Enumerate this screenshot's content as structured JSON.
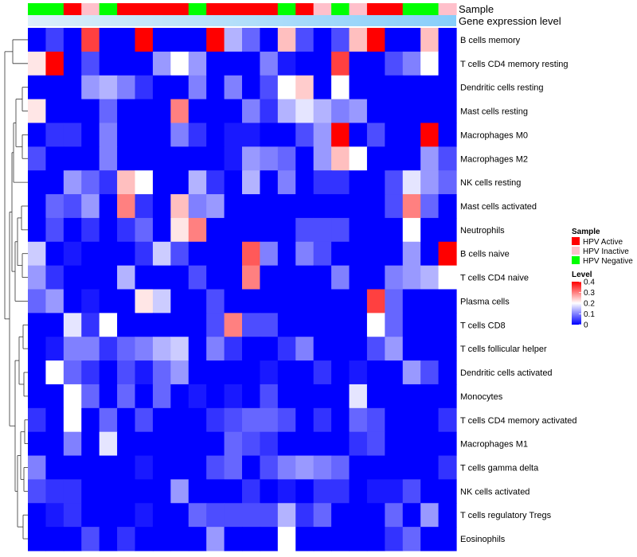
{
  "chart_data": {
    "type": "heatmap",
    "title": "",
    "annotation_labels": {
      "sample": "Sample",
      "expression": "Gene expression level"
    },
    "colors": {
      "low": "#0000FF",
      "mid": "#FFFFFF",
      "high": "#FF0000",
      "annotation_bar": "#87CEFA",
      "annotation_bar_light": "#DCEFFA",
      "HPV Active": "#FF0000",
      "HPV Inactive": "#FFC0CB",
      "HPV Negative": "#00FF00"
    },
    "sample_groups": [
      "Negative",
      "Negative",
      "Active",
      "Inactive",
      "Negative",
      "Active",
      "Active",
      "Active",
      "Active",
      "Negative",
      "Active",
      "Active",
      "Active",
      "Active",
      "Negative",
      "Active",
      "Inactive",
      "Negative",
      "Inactive",
      "Active",
      "Active",
      "Negative",
      "Negative",
      "Inactive"
    ],
    "sample_legend": {
      "title": "Sample",
      "entries": [
        {
          "key": "HPV Active",
          "label": "HPV Active"
        },
        {
          "key": "HPV Inactive",
          "label": "HPV Inactive"
        },
        {
          "key": "HPV Negative",
          "label": "HPV Negative"
        }
      ]
    },
    "color_legend": {
      "title": "Level",
      "range": [
        0,
        0.4
      ],
      "ticks": [
        {
          "value": 0.4,
          "label": "0.4"
        },
        {
          "value": 0.3,
          "label": "0.3"
        },
        {
          "value": 0.2,
          "label": "0.2"
        },
        {
          "value": 0.1,
          "label": "0.1"
        },
        {
          "value": 0,
          "label": "0"
        }
      ]
    },
    "rows": [
      "B cells memory",
      "T cells CD4 memory resting",
      "Dendritic cells resting",
      "Mast cells resting",
      "Macrophages M0",
      "Macrophages M2",
      "NK cells resting",
      "Mast cells activated",
      "Neutrophils",
      "B cells naive",
      "T cells CD4 naive",
      "Plasma cells",
      "T cells CD8",
      "T cells follicular helper",
      "Dendritic cells activated",
      "Monocytes",
      "T cells CD4 memory activated",
      "Macrophages M1",
      "T cells gamma delta",
      "NK cells activated",
      "T cells regulatory  Tregs",
      "Eosinophils"
    ],
    "values": [
      [
        0,
        0.05,
        0,
        0.35,
        0,
        0,
        0.4,
        0,
        0,
        0,
        0.4,
        0.14,
        0.08,
        0,
        0.25,
        0.06,
        0,
        0.06,
        0.25,
        0.4,
        0,
        0,
        0.25,
        0
      ],
      [
        0.22,
        0.4,
        0,
        0.06,
        0,
        0,
        0,
        0.12,
        0.2,
        0.12,
        0,
        0,
        0,
        0.1,
        0.02,
        0,
        0,
        0.35,
        0,
        0,
        0.06,
        0.1,
        0.2,
        0
      ],
      [
        0,
        0,
        0,
        0.12,
        0.14,
        0.1,
        0.04,
        0,
        0,
        0.1,
        0,
        0.1,
        0,
        0.06,
        0.2,
        0.24,
        0,
        0.2,
        0,
        0,
        0,
        0,
        0,
        0
      ],
      [
        0.22,
        0,
        0,
        0,
        0.08,
        0,
        0,
        0,
        0.3,
        0,
        0,
        0,
        0.1,
        0.04,
        0.14,
        0.18,
        0.14,
        0.1,
        0.12,
        0,
        0,
        0,
        0,
        0
      ],
      [
        0,
        0.04,
        0.04,
        0,
        0.1,
        0,
        0,
        0,
        0.1,
        0.04,
        0,
        0.02,
        0.02,
        0,
        0,
        0.06,
        0.12,
        0.4,
        0,
        0.06,
        0,
        0,
        0.4,
        0
      ],
      [
        0.06,
        0,
        0,
        0,
        0.1,
        0,
        0,
        0,
        0,
        0,
        0,
        0.02,
        0.12,
        0.1,
        0.08,
        0,
        0.12,
        0.25,
        0.2,
        0,
        0,
        0,
        0.12,
        0.06
      ],
      [
        0,
        0,
        0.12,
        0.08,
        0.04,
        0.25,
        0.2,
        0,
        0,
        0.14,
        0.04,
        0,
        0.14,
        0,
        0.1,
        0,
        0.04,
        0.04,
        0,
        0,
        0.06,
        0.18,
        0.12,
        0.08
      ],
      [
        0,
        0.08,
        0.06,
        0.12,
        0,
        0.3,
        0.04,
        0,
        0.25,
        0.1,
        0.12,
        0,
        0,
        0,
        0,
        0,
        0,
        0,
        0,
        0,
        0.06,
        0.3,
        0.08,
        0
      ],
      [
        0,
        0.06,
        0,
        0.04,
        0,
        0.04,
        0.08,
        0,
        0.22,
        0.3,
        0,
        0,
        0,
        0,
        0,
        0.06,
        0.06,
        0.06,
        0,
        0,
        0,
        0.2,
        0,
        0
      ],
      [
        0.16,
        0,
        0.02,
        0,
        0,
        0,
        0.04,
        0.16,
        0.06,
        0,
        0,
        0,
        0.33,
        0.1,
        0,
        0.1,
        0.06,
        0,
        0,
        0,
        0,
        0.12,
        0,
        0.4
      ],
      [
        0.12,
        0.04,
        0,
        0,
        0,
        0.14,
        0,
        0,
        0,
        0.06,
        0,
        0,
        0.3,
        0,
        0,
        0,
        0,
        0.1,
        0,
        0,
        0.1,
        0.12,
        0.14,
        0.2
      ],
      [
        0.08,
        0.12,
        0,
        0.02,
        0,
        0,
        0.22,
        0.16,
        0,
        0,
        0.06,
        0,
        0,
        0,
        0,
        0,
        0,
        0,
        0,
        0.35,
        0.08,
        0,
        0,
        0
      ],
      [
        0,
        0,
        0.18,
        0.04,
        0.2,
        0,
        0,
        0,
        0,
        0,
        0.06,
        0.3,
        0.06,
        0.06,
        0,
        0,
        0,
        0,
        0,
        0.2,
        0.08,
        0,
        0,
        0
      ],
      [
        0,
        0.02,
        0.1,
        0.1,
        0.04,
        0.08,
        0.1,
        0.14,
        0.16,
        0,
        0.1,
        0.04,
        0,
        0,
        0.04,
        0.1,
        0,
        0,
        0,
        0.06,
        0.12,
        0,
        0,
        0
      ],
      [
        0,
        0.2,
        0.08,
        0.04,
        0,
        0.06,
        0.02,
        0.08,
        0.12,
        0,
        0,
        0,
        0,
        0.02,
        0,
        0,
        0.04,
        0,
        0.02,
        0,
        0,
        0.12,
        0.06,
        0
      ],
      [
        0,
        0,
        0.2,
        0.08,
        0,
        0.08,
        0,
        0.08,
        0,
        0.02,
        0,
        0.02,
        0,
        0.06,
        0,
        0,
        0,
        0,
        0.18,
        0,
        0,
        0,
        0,
        0
      ],
      [
        0.04,
        0,
        0.2,
        0,
        0.08,
        0,
        0.06,
        0,
        0,
        0,
        0.04,
        0.06,
        0.08,
        0.08,
        0.06,
        0,
        0.04,
        0,
        0.08,
        0.06,
        0,
        0,
        0,
        0.04
      ],
      [
        0,
        0,
        0.1,
        0,
        0.18,
        0,
        0,
        0,
        0,
        0,
        0,
        0.08,
        0.06,
        0.04,
        0,
        0,
        0,
        0,
        0.04,
        0.06,
        0,
        0,
        0,
        0
      ],
      [
        0.1,
        0,
        0,
        0,
        0,
        0,
        0.02,
        0,
        0,
        0,
        0.06,
        0.08,
        0,
        0.06,
        0.1,
        0.12,
        0.1,
        0.08,
        0,
        0,
        0,
        0,
        0,
        0.04
      ],
      [
        0.06,
        0.04,
        0.04,
        0,
        0,
        0,
        0,
        0,
        0.12,
        0,
        0,
        0,
        0.04,
        0,
        0.02,
        0,
        0.04,
        0.04,
        0,
        0.02,
        0.02,
        0.06,
        0,
        0
      ],
      [
        0,
        0.02,
        0.04,
        0,
        0,
        0,
        0.02,
        0,
        0,
        0.08,
        0.06,
        0.06,
        0.06,
        0.06,
        0.14,
        0.04,
        0.08,
        0,
        0,
        0,
        0.08,
        0,
        0.12,
        0
      ],
      [
        0,
        0,
        0,
        0.06,
        0,
        0.04,
        0,
        0,
        0,
        0,
        0.12,
        0,
        0,
        0,
        0.2,
        0,
        0,
        0,
        0,
        0,
        0.04,
        0.08,
        0,
        0
      ]
    ]
  }
}
